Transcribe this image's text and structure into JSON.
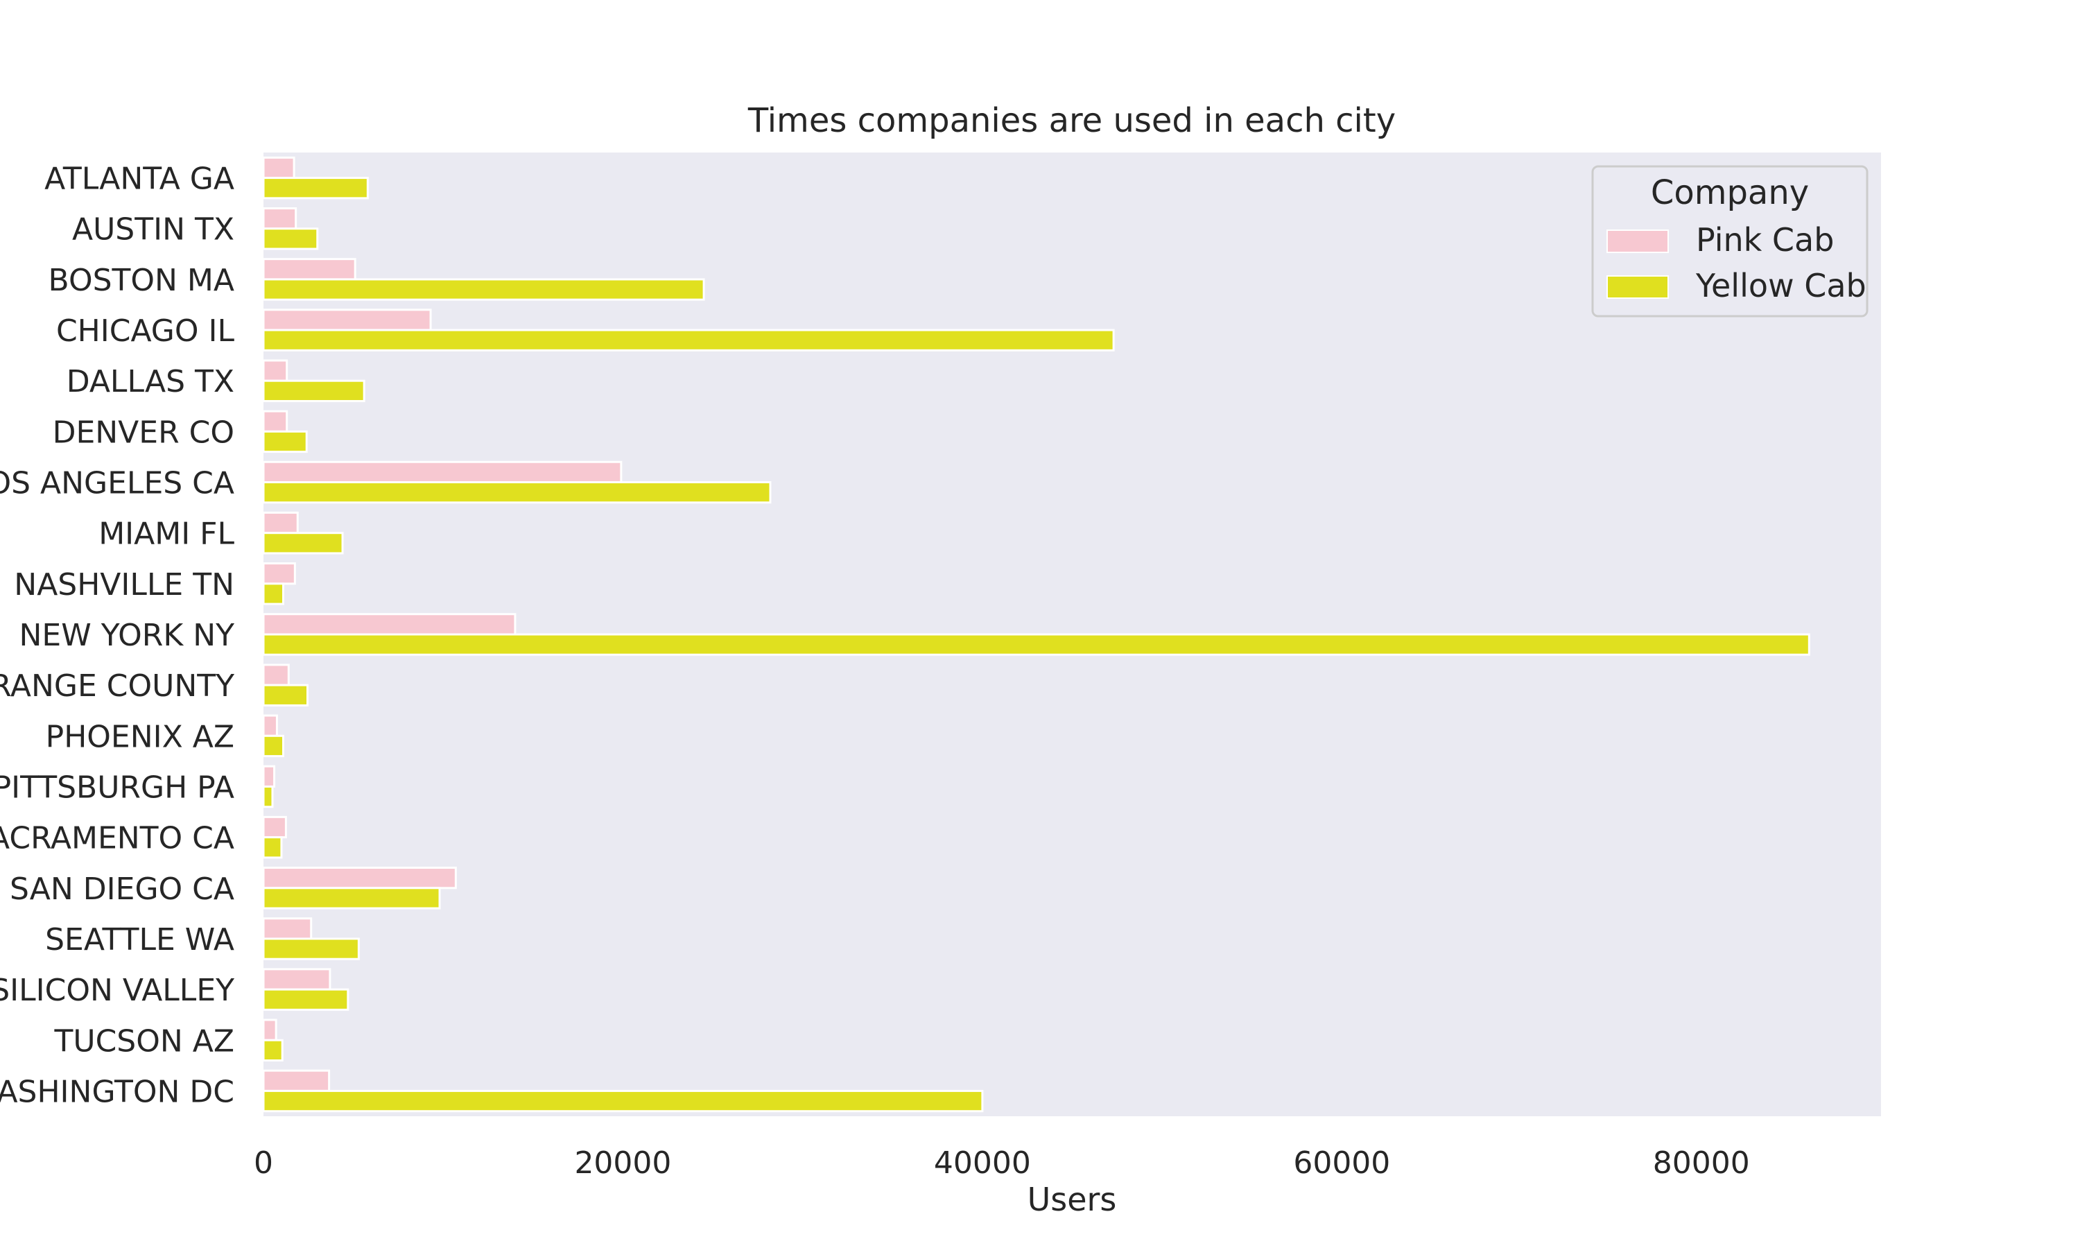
{
  "chart_data": {
    "type": "bar",
    "orientation": "horizontal",
    "title": "Times companies are used in each city",
    "xlabel": "Users",
    "ylabel": "",
    "xlim": [
      0,
      90000
    ],
    "xticks": [
      0,
      20000,
      40000,
      60000,
      80000
    ],
    "grid": false,
    "legend": {
      "title": "Company",
      "placement": "top-right"
    },
    "categories": [
      "ATLANTA GA",
      "AUSTIN TX",
      "BOSTON MA",
      "CHICAGO IL",
      "DALLAS TX",
      "DENVER CO",
      "LOS ANGELES CA",
      "MIAMI FL",
      "NASHVILLE TN",
      "NEW YORK NY",
      "ORANGE COUNTY",
      "PHOENIX AZ",
      "PITTSBURGH PA",
      "SACRAMENTO CA",
      "SAN DIEGO CA",
      "SEATTLE WA",
      "SILICON VALLEY",
      "TUCSON AZ",
      "WASHINGTON DC"
    ],
    "series": [
      {
        "name": "Pink Cab",
        "color": "#f7c8d1",
        "values": [
          1700,
          1800,
          5100,
          9300,
          1300,
          1300,
          19900,
          1900,
          1750,
          14000,
          1400,
          750,
          600,
          1250,
          10700,
          2650,
          3700,
          700,
          3650
        ]
      },
      {
        "name": "Yellow Cab",
        "color": "#e0e01f",
        "values": [
          5800,
          3000,
          24500,
          47300,
          5600,
          2400,
          28200,
          4400,
          1100,
          86000,
          2450,
          1100,
          500,
          1000,
          9800,
          5300,
          4700,
          1050,
          40000
        ]
      }
    ]
  }
}
